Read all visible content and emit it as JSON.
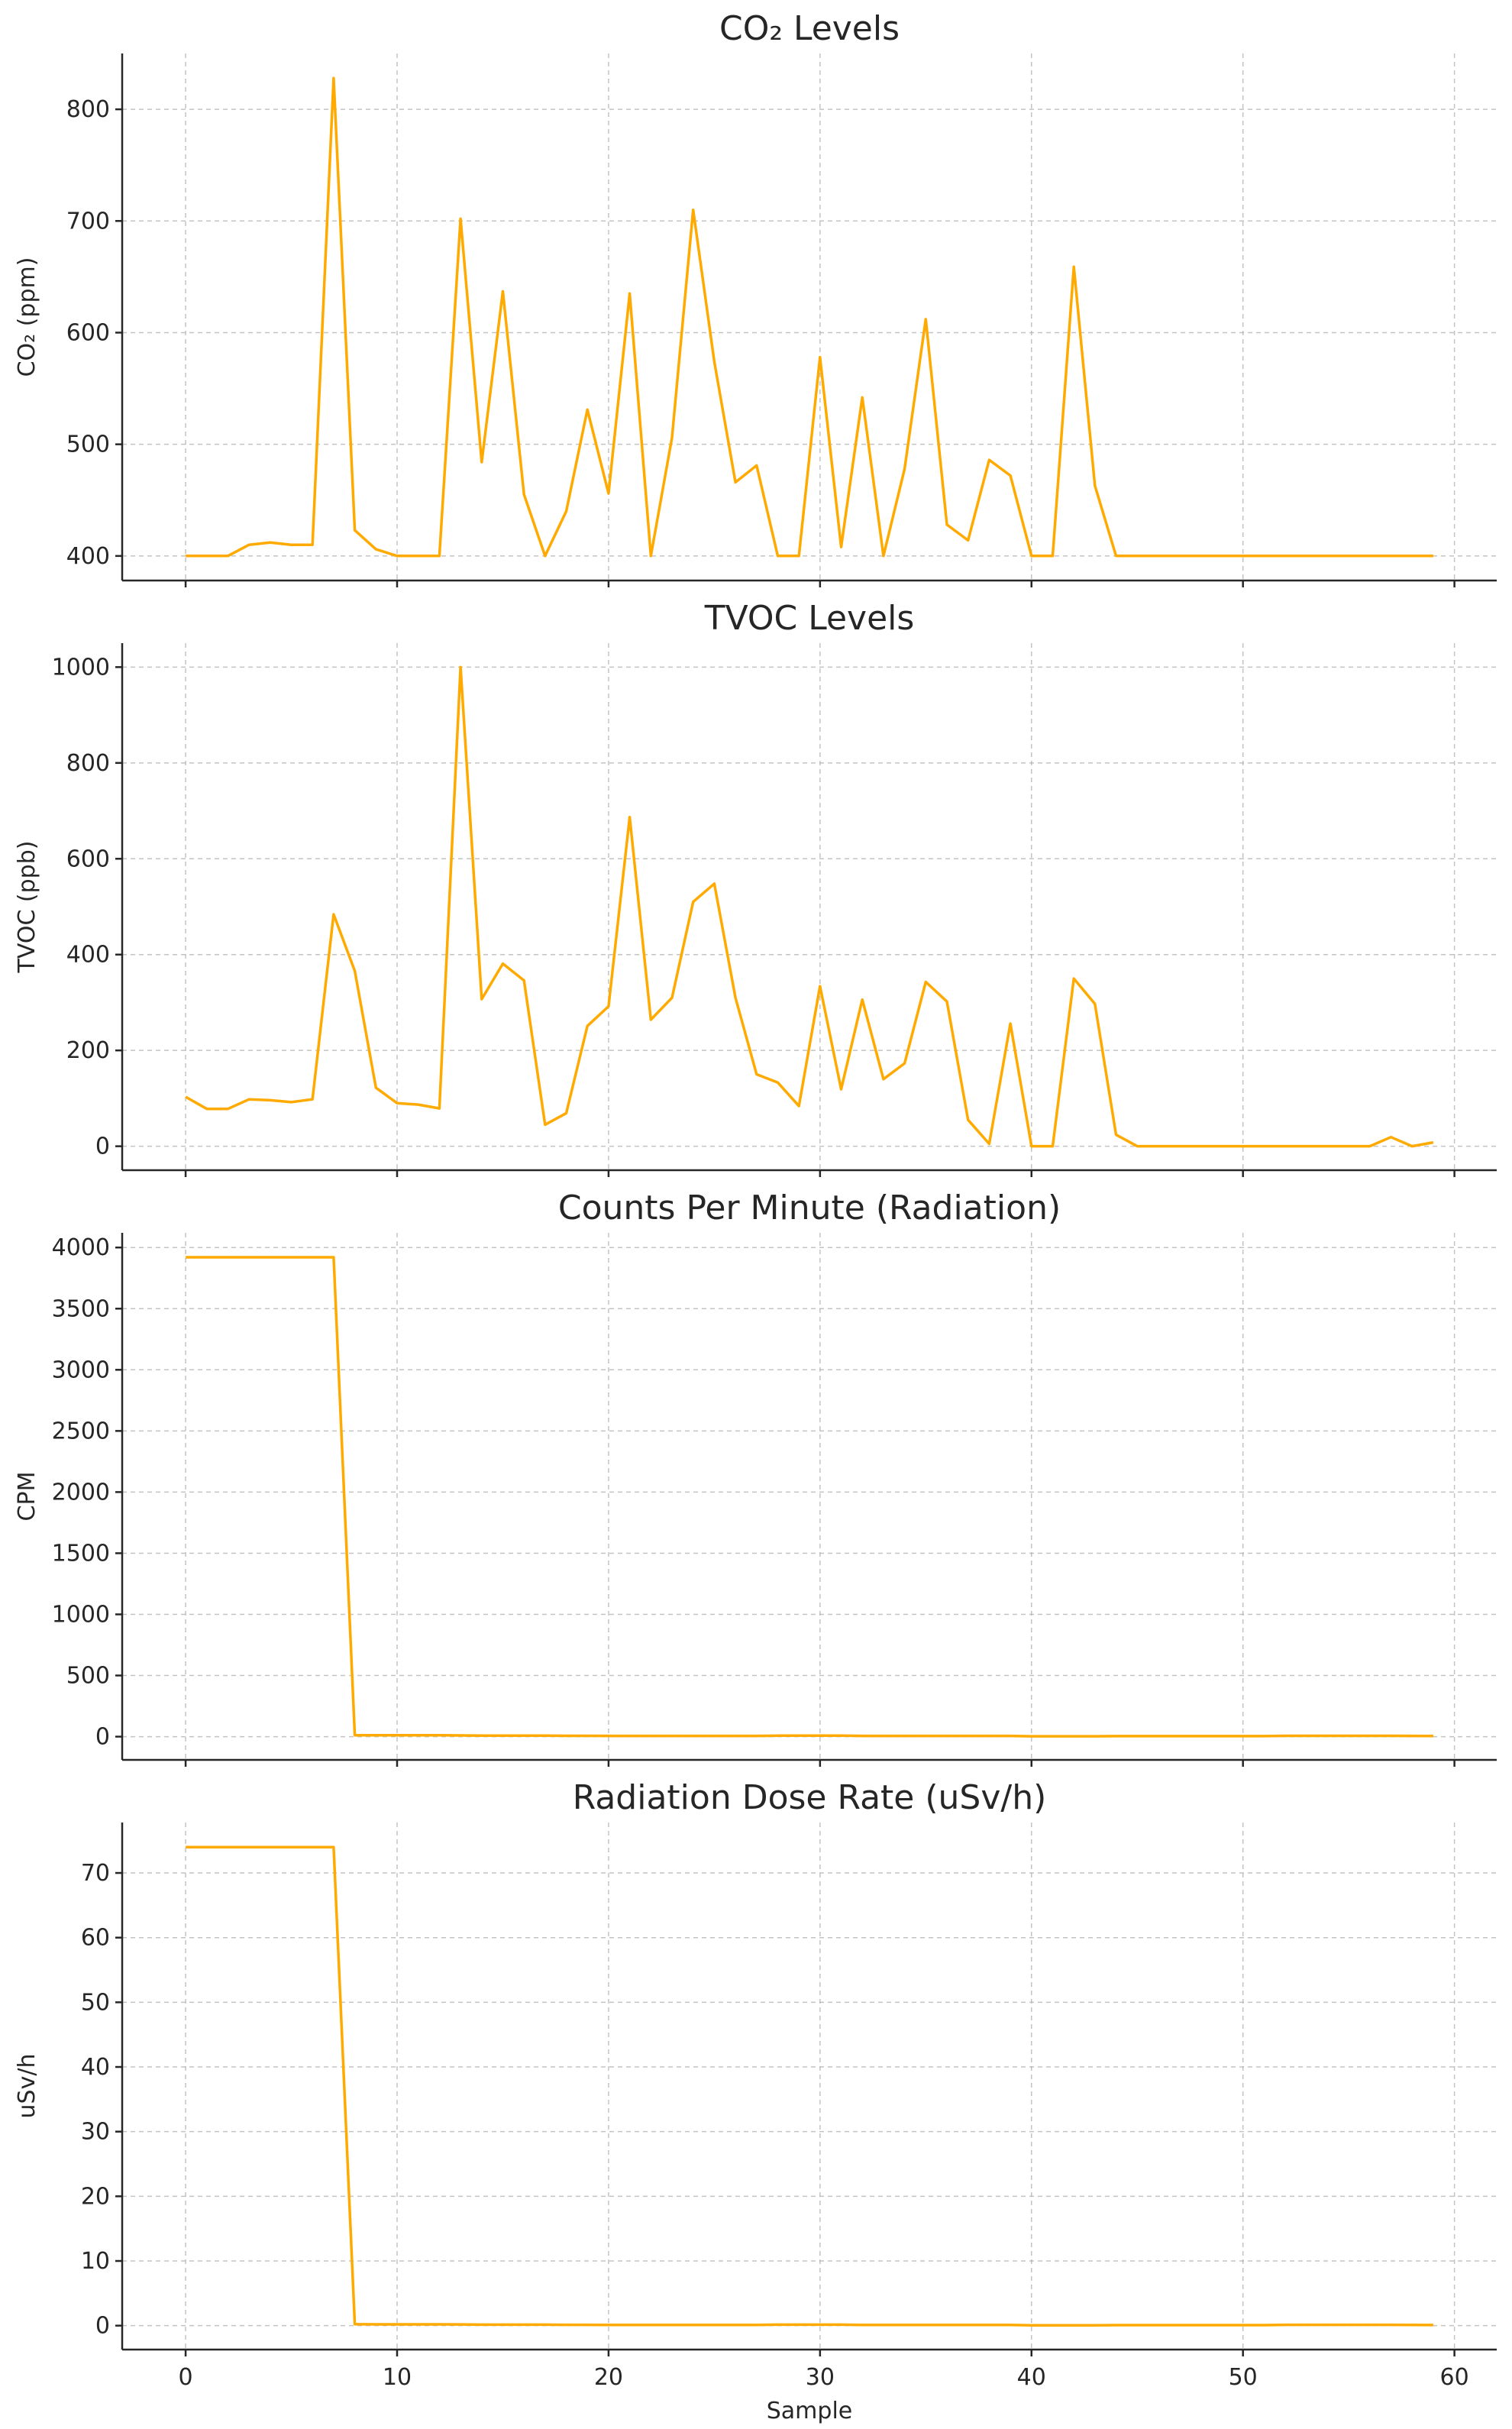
{
  "chart_data": [
    {
      "type": "line",
      "title": "CO₂ Levels",
      "xlabel": "",
      "ylabel": "CO₂ (ppm)",
      "xlim": [
        -3,
        62
      ],
      "ylim": [
        378,
        850
      ],
      "yticks": [
        400,
        500,
        600,
        700,
        800
      ],
      "xticks": [
        0,
        10,
        20,
        30,
        40,
        50,
        60
      ],
      "show_xtick_labels": false,
      "grid": true,
      "color": "#FFAA00",
      "x": [
        0,
        1,
        2,
        3,
        4,
        5,
        6,
        7,
        8,
        9,
        10,
        11,
        12,
        13,
        14,
        15,
        16,
        17,
        18,
        19,
        20,
        21,
        22,
        23,
        24,
        25,
        26,
        27,
        28,
        29,
        30,
        31,
        32,
        33,
        34,
        35,
        36,
        37,
        38,
        39,
        40,
        41,
        42,
        43,
        44,
        45,
        46,
        47,
        48,
        49,
        50,
        51,
        52,
        53,
        54,
        55,
        56,
        57,
        58,
        59
      ],
      "y": [
        400,
        400,
        400,
        410,
        412,
        410,
        410,
        828,
        423,
        406,
        400,
        400,
        400,
        702,
        484,
        637,
        455,
        400,
        440,
        531,
        456,
        635,
        400,
        506,
        710,
        574,
        466,
        481,
        400,
        400,
        578,
        408,
        542,
        400,
        478,
        612,
        428,
        414,
        486,
        472,
        400,
        400,
        659,
        463,
        400,
        400,
        400,
        400,
        400,
        400,
        400,
        400,
        400,
        400,
        400,
        400,
        400,
        400,
        400,
        400
      ]
    },
    {
      "type": "line",
      "title": "TVOC Levels",
      "xlabel": "",
      "ylabel": "TVOC (ppb)",
      "xlim": [
        -3,
        62
      ],
      "ylim": [
        -50,
        1050
      ],
      "yticks": [
        0,
        200,
        400,
        600,
        800,
        1000
      ],
      "xticks": [
        0,
        10,
        20,
        30,
        40,
        50,
        60
      ],
      "show_xtick_labels": false,
      "grid": true,
      "color": "#FFAA00",
      "x": [
        0,
        1,
        2,
        3,
        4,
        5,
        6,
        7,
        8,
        9,
        10,
        11,
        12,
        13,
        14,
        15,
        16,
        17,
        18,
        19,
        20,
        21,
        22,
        23,
        24,
        25,
        26,
        27,
        28,
        29,
        30,
        31,
        32,
        33,
        34,
        35,
        36,
        37,
        38,
        39,
        40,
        41,
        42,
        43,
        44,
        45,
        46,
        47,
        48,
        49,
        50,
        51,
        52,
        53,
        54,
        55,
        56,
        57,
        58,
        59
      ],
      "y": [
        103,
        78,
        78,
        98,
        96,
        92,
        98,
        484,
        366,
        122,
        90,
        87,
        79,
        1000,
        307,
        381,
        346,
        45,
        69,
        251,
        292,
        687,
        264,
        310,
        510,
        548,
        310,
        150,
        133,
        84,
        334,
        119,
        306,
        140,
        173,
        343,
        302,
        55,
        5,
        256,
        0,
        0,
        350,
        297,
        24,
        0,
        0,
        0,
        0,
        0,
        0,
        0,
        0,
        0,
        0,
        0,
        0,
        19,
        0,
        8
      ]
    },
    {
      "type": "line",
      "title": "Counts Per Minute (Radiation)",
      "xlabel": "",
      "ylabel": "CPM",
      "xlim": [
        -3,
        62
      ],
      "ylim": [
        -190,
        4120
      ],
      "yticks": [
        0,
        500,
        1000,
        1500,
        2000,
        2500,
        3000,
        3500,
        4000
      ],
      "xticks": [
        0,
        10,
        20,
        30,
        40,
        50,
        60
      ],
      "show_xtick_labels": false,
      "grid": true,
      "color": "#FFAA00",
      "x": [
        0,
        1,
        2,
        3,
        4,
        5,
        6,
        7,
        8,
        9,
        10,
        11,
        12,
        13,
        14,
        15,
        16,
        17,
        18,
        19,
        20,
        21,
        22,
        23,
        24,
        25,
        26,
        27,
        28,
        29,
        30,
        31,
        32,
        33,
        34,
        35,
        36,
        37,
        38,
        39,
        40,
        41,
        42,
        43,
        44,
        45,
        46,
        47,
        48,
        49,
        50,
        51,
        52,
        53,
        54,
        55,
        56,
        57,
        58,
        59
      ],
      "y": [
        3920,
        3920,
        3920,
        3920,
        3920,
        3920,
        3920,
        3920,
        12,
        11,
        11,
        11,
        11,
        10,
        8,
        8,
        8,
        8,
        7,
        7,
        6,
        6,
        6,
        6,
        6,
        6,
        6,
        6,
        8,
        8,
        8,
        8,
        6,
        6,
        6,
        6,
        6,
        6,
        6,
        6,
        3,
        3,
        3,
        3,
        4,
        4,
        4,
        4,
        4,
        4,
        4,
        4,
        7,
        7,
        7,
        7,
        7,
        7,
        6,
        5
      ]
    },
    {
      "type": "line",
      "title": "Radiation Dose Rate (uSv/h)",
      "xlabel": "Sample",
      "ylabel": "uSv/h",
      "xlim": [
        -3,
        62
      ],
      "ylim": [
        -3.7,
        77.8
      ],
      "yticks": [
        0,
        10,
        20,
        30,
        40,
        50,
        60,
        70
      ],
      "xticks": [
        0,
        10,
        20,
        30,
        40,
        50,
        60
      ],
      "show_xtick_labels": true,
      "grid": true,
      "color": "#FFAA00",
      "x": [
        0,
        1,
        2,
        3,
        4,
        5,
        6,
        7,
        8,
        9,
        10,
        11,
        12,
        13,
        14,
        15,
        16,
        17,
        18,
        19,
        20,
        21,
        22,
        23,
        24,
        25,
        26,
        27,
        28,
        29,
        30,
        31,
        32,
        33,
        34,
        35,
        36,
        37,
        38,
        39,
        40,
        41,
        42,
        43,
        44,
        45,
        46,
        47,
        48,
        49,
        50,
        51,
        52,
        53,
        54,
        55,
        56,
        57,
        58,
        59
      ],
      "y": [
        74,
        74,
        74,
        74,
        74,
        74,
        74,
        74,
        0.22,
        0.2,
        0.2,
        0.2,
        0.2,
        0.19,
        0.15,
        0.15,
        0.15,
        0.15,
        0.13,
        0.13,
        0.11,
        0.11,
        0.11,
        0.11,
        0.11,
        0.11,
        0.11,
        0.11,
        0.15,
        0.15,
        0.15,
        0.15,
        0.11,
        0.11,
        0.11,
        0.11,
        0.11,
        0.11,
        0.11,
        0.11,
        0.06,
        0.06,
        0.06,
        0.06,
        0.08,
        0.08,
        0.08,
        0.08,
        0.08,
        0.08,
        0.08,
        0.08,
        0.13,
        0.13,
        0.13,
        0.13,
        0.13,
        0.13,
        0.11,
        0.09
      ]
    }
  ]
}
